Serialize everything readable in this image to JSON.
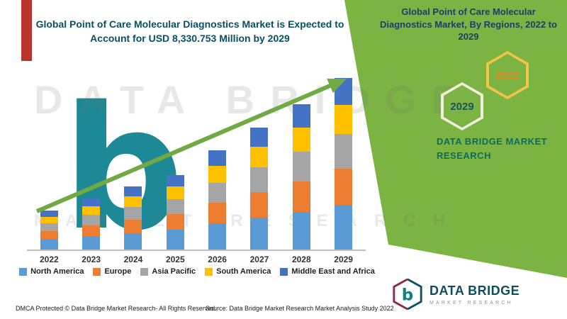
{
  "left_section": {
    "title": "Global Point of Care Molecular Diagnostics Market is Expected to Account for USD 8,330.753 Million by 2029"
  },
  "right_panel": {
    "title": "Global Point of Care Molecular Diagnostics Market, By Regions, 2022 to 2029",
    "panel_color": "#7cb444",
    "brand_text": "DATA BRIDGE MARKET RESEARCH",
    "hexagons": [
      {
        "label": "2029",
        "border_color": "#f2efdc",
        "text_color": "#14555e"
      },
      {
        "label": "2022",
        "border_color": "#f5c445",
        "text_color": "#e8821e"
      }
    ]
  },
  "chart_data": {
    "type": "bar",
    "stacked": true,
    "title": "Global Point of Care Molecular Diagnostics Market is Expected to Account for USD 8,330.753 Million by 2029",
    "unit": "USD Million",
    "categories": [
      "2022",
      "2023",
      "2024",
      "2025",
      "2026",
      "2027",
      "2028",
      "2029"
    ],
    "series": [
      {
        "name": "North America",
        "color": "#5B9BD5",
        "values": [
          500,
          650,
          800,
          950,
          1260,
          1550,
          1840,
          2180
        ]
      },
      {
        "name": "Europe",
        "color": "#ED7D31",
        "values": [
          400,
          520,
          640,
          760,
          1010,
          1240,
          1480,
          1750
        ]
      },
      {
        "name": "Asia Pacific",
        "color": "#A5A5A5",
        "values": [
          380,
          500,
          620,
          730,
          970,
          1200,
          1420,
          1680
        ]
      },
      {
        "name": "South America",
        "color": "#FFC000",
        "values": [
          320,
          420,
          520,
          610,
          810,
          1000,
          1190,
          1410
        ]
      },
      {
        "name": "Middle East and Africa",
        "color": "#4472C4",
        "values": [
          300,
          390,
          490,
          580,
          760,
          940,
          1120,
          1310.753
        ]
      }
    ],
    "ylim": [
      0,
      8600
    ],
    "total_2029": "USD 8,330.753 Million",
    "annotation": "upward trend arrow",
    "arrow_color": "#71A942",
    "legend_position": "bottom",
    "gridlines": false
  },
  "watermark": {
    "line1": "DATA BRIDGE",
    "line2": "MARKET RESEARCH",
    "logo_letter": "b"
  },
  "footer": {
    "dmca": "DMCA Protected © Data Bridge Market Research- All Rights Reserved.",
    "source": "Source: Data Bridge Market Research Market Analysis Study 2022",
    "brand": {
      "name": "DATA BRIDGE",
      "tagline": "MARKET RESEARCH"
    }
  }
}
